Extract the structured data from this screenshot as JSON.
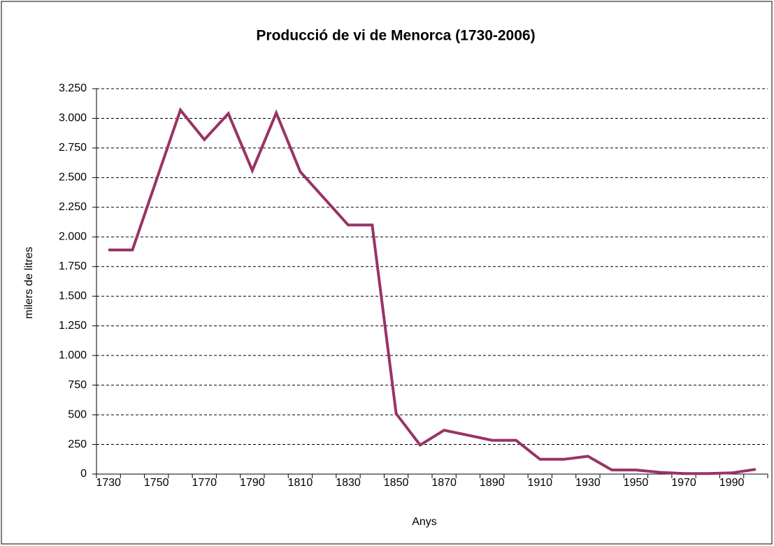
{
  "chart_data": {
    "type": "line",
    "title": "Producció de vi de Menorca (1730-2006)",
    "x_label": "Anys",
    "y_label": "milers de litres",
    "categories": [
      "1730",
      null,
      "1750",
      null,
      "1770",
      null,
      "1790",
      null,
      "1810",
      null,
      "1830",
      null,
      "1850",
      null,
      "1870",
      null,
      "1890",
      null,
      "1910",
      null,
      "1930",
      null,
      "1950",
      null,
      "1970",
      null,
      "1990",
      null
    ],
    "series": [
      {
        "name": "Producció",
        "color": "#993366",
        "values": [
          1890,
          1890,
          2480,
          3070,
          2820,
          3040,
          2560,
          3045,
          2550,
          2325,
          2100,
          2100,
          510,
          245,
          370,
          328,
          285,
          285,
          125,
          125,
          150,
          35,
          35,
          15,
          5,
          5,
          10,
          40
        ]
      }
    ],
    "ylim": [
      0,
      3250
    ],
    "yticks": [
      0,
      250,
      500,
      750,
      {
        "value": 1000,
        "label": "1.000"
      },
      {
        "value": 1250,
        "label": "1.250"
      },
      {
        "value": 1500,
        "label": "1.500"
      },
      {
        "value": 1750,
        "label": "1.750"
      },
      {
        "value": 2000,
        "label": "2.000"
      },
      {
        "value": 2250,
        "label": "2.250"
      },
      {
        "value": 2500,
        "label": "2.500"
      },
      {
        "value": 2750,
        "label": "2.750"
      },
      {
        "value": 3000,
        "label": "3.000"
      },
      {
        "value": 3250,
        "label": "3.250"
      }
    ],
    "grid": true
  }
}
